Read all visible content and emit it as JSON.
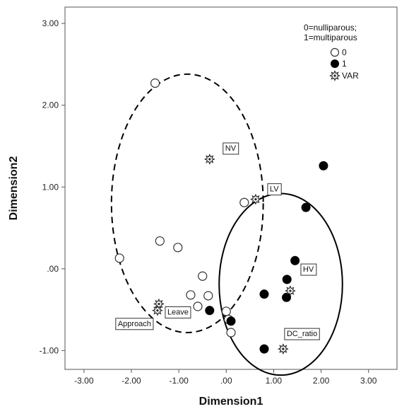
{
  "chart_data": {
    "type": "scatter",
    "title": "",
    "xlabel": "Dimension1",
    "ylabel": "Dimension2",
    "xlim": [
      -3.4,
      3.6
    ],
    "ylim": [
      -1.23,
      3.2
    ],
    "xticks": [
      -3,
      -2,
      -1,
      0,
      1,
      2,
      3
    ],
    "yticks": [
      -1,
      0,
      1,
      2,
      3
    ],
    "xtick_labels": [
      "-3.00",
      "-2.00",
      "-1.00",
      ".00",
      "1.00",
      "2.00",
      "3.00"
    ],
    "ytick_labels": [
      "-1.00",
      ".00",
      "1.00",
      "2.00",
      "3.00"
    ],
    "grid": false,
    "legend": {
      "position": "top-right",
      "title_lines": [
        "0=nulliparous;",
        "1=multiparous"
      ],
      "entries": [
        {
          "label": "0",
          "marker": "open-circle"
        },
        {
          "label": "1",
          "marker": "filled-circle"
        },
        {
          "label": "VAR",
          "marker": "star"
        }
      ]
    },
    "series": [
      {
        "name": "0",
        "marker": "open-circle",
        "points": [
          [
            -1.5,
            2.27
          ],
          [
            0.38,
            0.81
          ],
          [
            -2.25,
            0.13
          ],
          [
            -1.4,
            0.34
          ],
          [
            -1.02,
            0.26
          ],
          [
            -0.5,
            -0.09
          ],
          [
            -0.75,
            -0.32
          ],
          [
            -0.38,
            -0.33
          ],
          [
            -0.6,
            -0.46
          ],
          [
            0.0,
            -0.52
          ],
          [
            0.05,
            -0.62
          ],
          [
            0.1,
            -0.78
          ]
        ]
      },
      {
        "name": "1",
        "marker": "filled-circle",
        "points": [
          [
            2.05,
            1.26
          ],
          [
            1.68,
            0.75
          ],
          [
            1.45,
            0.1
          ],
          [
            1.28,
            -0.13
          ],
          [
            0.8,
            -0.31
          ],
          [
            1.27,
            -0.35
          ],
          [
            -0.35,
            -0.51
          ],
          [
            0.1,
            -0.64
          ],
          [
            0.8,
            -0.98
          ]
        ]
      },
      {
        "name": "VAR",
        "marker": "star",
        "points": [
          {
            "x": -0.35,
            "y": 1.34,
            "label": "NV"
          },
          {
            "x": 0.62,
            "y": 0.85,
            "label": "LV"
          },
          {
            "x": 1.35,
            "y": -0.27,
            "label": "HV"
          },
          {
            "x": -1.42,
            "y": -0.43,
            "label": "Leave"
          },
          {
            "x": -1.45,
            "y": -0.51,
            "label": "Approach"
          },
          {
            "x": 1.2,
            "y": -0.98,
            "label": "DC_ratio"
          }
        ]
      }
    ],
    "annotations": [
      {
        "shape": "ellipse",
        "style": "dashed",
        "cx": -0.82,
        "cy": 0.8,
        "rx": 1.6,
        "ry": 1.58
      },
      {
        "shape": "ellipse",
        "style": "solid",
        "cx": 1.15,
        "cy": -0.19,
        "rx": 1.3,
        "ry": 1.11
      }
    ]
  }
}
